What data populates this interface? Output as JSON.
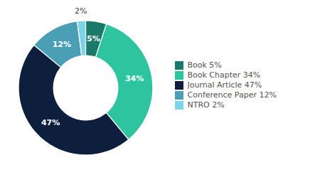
{
  "chart_data": {
    "type": "pie",
    "categories": [
      "Book 5%",
      "Book Chapter 34%",
      "Journal Article 47%",
      "Conference Paper 12%",
      "NTRO 2%"
    ],
    "values": [
      5,
      34,
      47,
      12,
      2
    ],
    "value_labels": [
      "5%",
      "34%",
      "47%",
      "12%",
      "2%"
    ],
    "colors": [
      "#1a7a6a",
      "#2ec4a0",
      "#0d1f3c",
      "#4a9fb5",
      "#7dd3e8"
    ],
    "data_labels": true,
    "legend": "right"
  }
}
